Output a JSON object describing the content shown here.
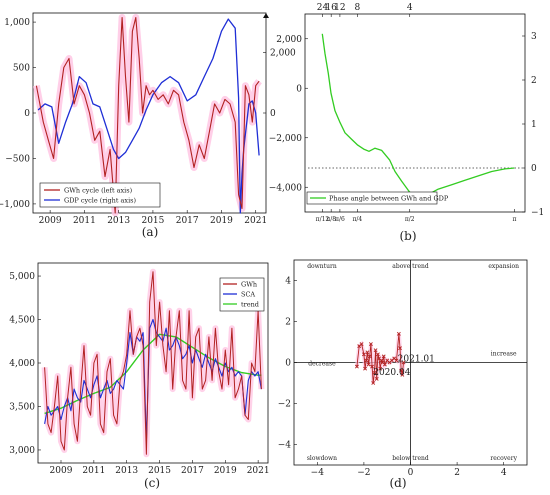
{
  "colors": {
    "gwh": "#b22222",
    "gdp": "#1f2fd6",
    "sca": "#1f2fd6",
    "trend": "#33cc22",
    "phase": "#33cc22",
    "pink": "#ffc7e4",
    "axis": "#111111"
  },
  "chart_data": [
    {
      "id": "a",
      "type": "line",
      "panel_label": "(a)",
      "xlim": [
        2008,
        2021.6
      ],
      "x_ticks": [
        "2009",
        "2011",
        "2013",
        "2015",
        "2017",
        "2019",
        "2021"
      ],
      "y_left": {
        "lim": [
          -1100,
          1100
        ],
        "ticks": [
          "−1,000",
          "−500",
          "0",
          "500",
          "1,000"
        ],
        "tick_values": [
          -1000,
          -500,
          0,
          500,
          1000
        ]
      },
      "y_right": {
        "lim": [
          -3300,
          3300
        ],
        "ticks": [
          "0",
          "2,000"
        ],
        "tick_values": [
          0,
          2000
        ]
      },
      "legend": [
        "GWh cycle (left axis)",
        "GDP cycle (right axis)"
      ],
      "series": [
        {
          "name": "GWh cycle (left axis)",
          "axis": "left",
          "x": [
            2008.2,
            2008.6,
            2008.9,
            2009.2,
            2009.5,
            2009.8,
            2010.1,
            2010.4,
            2010.7,
            2011.0,
            2011.3,
            2011.6,
            2011.9,
            2012.2,
            2012.5,
            2012.8,
            2013.0,
            2013.2,
            2013.4,
            2013.6,
            2013.8,
            2014.0,
            2014.2,
            2014.4,
            2014.6,
            2014.8,
            2015.0,
            2015.3,
            2015.6,
            2015.9,
            2016.2,
            2016.5,
            2016.8,
            2017.1,
            2017.4,
            2017.7,
            2018.0,
            2018.3,
            2018.6,
            2018.9,
            2019.2,
            2019.5,
            2019.8,
            2020.0,
            2020.2,
            2020.4,
            2020.6,
            2020.8,
            2021.0,
            2021.2
          ],
          "y": [
            300,
            -100,
            -300,
            -500,
            100,
            500,
            600,
            100,
            300,
            200,
            0,
            -300,
            -200,
            -700,
            -400,
            -1100,
            300,
            1050,
            400,
            -100,
            900,
            1050,
            600,
            0,
            300,
            200,
            250,
            150,
            200,
            100,
            250,
            200,
            -100,
            -300,
            -600,
            -350,
            -500,
            -200,
            100,
            0,
            150,
            100,
            -100,
            -900,
            -1050,
            300,
            200,
            -100,
            300,
            350
          ]
        },
        {
          "name": "GDP cycle (right axis)",
          "axis": "right",
          "x": [
            2008.3,
            2008.7,
            2009.1,
            2009.5,
            2009.9,
            2010.3,
            2010.7,
            2011.1,
            2011.5,
            2011.9,
            2012.3,
            2012.7,
            2013.0,
            2013.4,
            2013.8,
            2014.2,
            2014.6,
            2015.0,
            2015.5,
            2016.0,
            2016.5,
            2017.0,
            2017.5,
            2018.0,
            2018.5,
            2019.0,
            2019.4,
            2019.8,
            2020.0,
            2020.1,
            2020.2,
            2020.3,
            2020.4,
            2020.6,
            2020.8,
            2021.0,
            2021.2
          ],
          "y": [
            100,
            300,
            200,
            -1000,
            -300,
            300,
            1200,
            1000,
            300,
            200,
            -500,
            -1200,
            -1500,
            -1300,
            -900,
            -500,
            100,
            600,
            1000,
            1200,
            1000,
            400,
            600,
            1200,
            1800,
            2700,
            3100,
            2800,
            500,
            -3300,
            -2000,
            -1200,
            -700,
            300,
            400,
            0,
            -1400
          ]
        }
      ]
    },
    {
      "id": "b",
      "type": "line",
      "panel_label": "(b)",
      "top_axis_ticks": [
        "24",
        "16",
        "12",
        "8",
        "4"
      ],
      "x_ticks": [
        "π/12",
        "π/8",
        "π/6",
        "π/4",
        "π/2",
        "π"
      ],
      "y_left": {
        "lim": [
          -5000,
          3000
        ],
        "ticks": [
          "−4,000",
          "−2,000",
          "0",
          "2,000"
        ],
        "tick_values": [
          -4000,
          -2000,
          0,
          2000
        ]
      },
      "y_right": {
        "lim": [
          -1,
          3.5
        ],
        "ticks": [
          "−1",
          "0",
          "1",
          "2",
          "3"
        ],
        "tick_values": [
          -1,
          0,
          1,
          2,
          3
        ]
      },
      "reference_line": 0,
      "legend": [
        "Phase angle between GWh and GDP"
      ],
      "series": [
        {
          "name": "Phase angle between GWh and GDP",
          "axis": "right",
          "x": [
            0.26,
            0.3,
            0.35,
            0.39,
            0.45,
            0.52,
            0.6,
            0.7,
            0.79,
            0.88,
            0.96,
            1.05,
            1.15,
            1.27,
            1.35,
            1.45,
            1.57,
            1.7,
            1.85,
            2.0,
            2.2,
            2.4,
            2.6,
            2.8,
            3.0,
            3.14
          ],
          "y": [
            3.05,
            2.6,
            2.15,
            1.7,
            1.3,
            1.05,
            0.8,
            0.65,
            0.52,
            0.43,
            0.38,
            0.45,
            0.4,
            0.18,
            -0.08,
            -0.3,
            -0.55,
            -0.65,
            -0.6,
            -0.48,
            -0.38,
            -0.28,
            -0.18,
            -0.08,
            -0.02,
            0.0
          ]
        }
      ]
    },
    {
      "id": "c",
      "type": "line",
      "panel_label": "(c)",
      "xlim": [
        2007.6,
        2021.6
      ],
      "ylim": [
        2850,
        5150
      ],
      "x_ticks": [
        "2009",
        "2011",
        "2013",
        "2015",
        "2017",
        "2019",
        "2021"
      ],
      "y_ticks": [
        "3,000",
        "3,500",
        "4,000",
        "4,500",
        "5,000"
      ],
      "y_tick_values": [
        3000,
        3500,
        4000,
        4500,
        5000
      ],
      "legend": [
        "GWh",
        "SCA",
        "trend"
      ],
      "series": [
        {
          "name": "GWh",
          "x": [
            2008.0,
            2008.2,
            2008.4,
            2008.6,
            2008.8,
            2009.0,
            2009.2,
            2009.4,
            2009.6,
            2009.8,
            2010.0,
            2010.2,
            2010.4,
            2010.6,
            2010.8,
            2011.0,
            2011.2,
            2011.4,
            2011.6,
            2011.8,
            2012.0,
            2012.2,
            2012.4,
            2012.6,
            2012.8,
            2013.0,
            2013.2,
            2013.4,
            2013.6,
            2013.8,
            2014.0,
            2014.2,
            2014.4,
            2014.6,
            2014.8,
            2015.0,
            2015.2,
            2015.4,
            2015.6,
            2015.8,
            2016.0,
            2016.2,
            2016.4,
            2016.6,
            2016.8,
            2017.0,
            2017.2,
            2017.4,
            2017.6,
            2017.8,
            2018.0,
            2018.2,
            2018.4,
            2018.6,
            2018.8,
            2019.0,
            2019.2,
            2019.4,
            2019.6,
            2019.8,
            2020.0,
            2020.2,
            2020.4,
            2020.6,
            2020.8,
            2021.0,
            2021.2
          ],
          "y": [
            3950,
            3300,
            3200,
            3500,
            3850,
            3100,
            3000,
            3600,
            3950,
            3300,
            3100,
            3700,
            4200,
            3500,
            3400,
            4000,
            4100,
            3300,
            3200,
            3900,
            4050,
            3400,
            3300,
            3800,
            3900,
            4100,
            4600,
            4100,
            4300,
            4400,
            4200,
            2950,
            4700,
            5050,
            4200,
            4700,
            4200,
            3900,
            4600,
            3700,
            4300,
            4600,
            3800,
            3700,
            4600,
            3600,
            4300,
            4400,
            3700,
            3800,
            4300,
            3800,
            4400,
            3900,
            3700,
            4150,
            3750,
            4400,
            3600,
            3700,
            3850,
            3400,
            3350,
            4000,
            3900,
            4600,
            3700
          ]
        },
        {
          "name": "SCA",
          "x": [
            2008.0,
            2008.2,
            2008.4,
            2008.6,
            2008.8,
            2009.0,
            2009.2,
            2009.4,
            2009.6,
            2009.8,
            2010.0,
            2010.2,
            2010.4,
            2010.6,
            2010.8,
            2011.0,
            2011.2,
            2011.4,
            2011.6,
            2011.8,
            2012.0,
            2012.2,
            2012.4,
            2012.6,
            2012.8,
            2013.0,
            2013.2,
            2013.4,
            2013.6,
            2013.8,
            2014.0,
            2014.2,
            2014.4,
            2014.6,
            2014.8,
            2015.0,
            2015.2,
            2015.4,
            2015.6,
            2015.8,
            2016.0,
            2016.2,
            2016.4,
            2016.6,
            2016.8,
            2017.0,
            2017.2,
            2017.4,
            2017.6,
            2017.8,
            2018.0,
            2018.2,
            2018.4,
            2018.6,
            2018.8,
            2019.0,
            2019.2,
            2019.4,
            2019.6,
            2019.8,
            2020.0,
            2020.2,
            2020.4,
            2020.6,
            2020.8,
            2021.0,
            2021.2
          ],
          "y": [
            3300,
            3500,
            3400,
            3450,
            3500,
            3350,
            3500,
            3600,
            3450,
            3700,
            3600,
            3550,
            3800,
            3700,
            3600,
            3750,
            3850,
            3600,
            3700,
            3800,
            3650,
            3700,
            3800,
            3750,
            3700,
            4000,
            4350,
            4100,
            4300,
            4250,
            4350,
            3100,
            4400,
            4500,
            4350,
            4300,
            4250,
            4400,
            4150,
            4200,
            4300,
            4200,
            4050,
            4100,
            4200,
            4000,
            4150,
            4050,
            3950,
            4100,
            4000,
            3900,
            4050,
            3950,
            3850,
            4000,
            3900,
            3950,
            3850,
            3900,
            3850,
            3400,
            3800,
            3900,
            3850,
            3900,
            3700
          ]
        },
        {
          "name": "trend",
          "x": [
            2008.0,
            2009.0,
            2010.0,
            2011.0,
            2012.0,
            2013.0,
            2014.0,
            2015.0,
            2016.0,
            2017.0,
            2018.0,
            2019.0,
            2020.0,
            2021.0,
            2021.2
          ],
          "y": [
            3420,
            3480,
            3570,
            3650,
            3720,
            3900,
            4150,
            4330,
            4300,
            4180,
            4060,
            3960,
            3890,
            3860,
            3860
          ]
        }
      ]
    },
    {
      "id": "d",
      "type": "scatter",
      "panel_label": "(d)",
      "xlim": [
        -5,
        5
      ],
      "ylim": [
        -5,
        5
      ],
      "x_ticks": [
        "−4",
        "−2",
        "0",
        "2",
        "4"
      ],
      "x_tick_values": [
        -4,
        -2,
        0,
        2,
        4
      ],
      "y_ticks": [
        "−4",
        "−2",
        "0",
        "2",
        "4"
      ],
      "y_tick_values": [
        -4,
        -2,
        0,
        2,
        4
      ],
      "quadrant_labels": [
        "downturn",
        "above trend",
        "expansion",
        "decrease",
        "increase",
        "slowdown",
        "below trend",
        "recovery"
      ],
      "annotations": [
        {
          "text": "2021.01",
          "x": -0.55,
          "y": 0.05
        },
        {
          "text": "2020.04",
          "x": -1.6,
          "y": -0.6
        }
      ],
      "points": {
        "x": [
          -2.3,
          -2.2,
          -2.1,
          -2.0,
          -1.95,
          -1.9,
          -1.85,
          -1.8,
          -1.75,
          -1.7,
          -1.65,
          -1.6,
          -1.55,
          -1.5,
          -1.45,
          -1.4,
          -1.35,
          -1.3,
          -1.25,
          -1.2,
          -1.15,
          -1.1,
          -1.0,
          -0.9,
          -0.8,
          -0.7,
          -0.6,
          -0.5,
          -0.45,
          -0.4,
          -0.35,
          -0.3
        ],
        "y": [
          -0.2,
          0.8,
          0.9,
          0.4,
          -0.3,
          0.1,
          0.5,
          -0.1,
          0.3,
          0.9,
          -0.2,
          -1.0,
          -0.5,
          0.6,
          -0.8,
          0.4,
          0.2,
          -0.3,
          0.1,
          0.0,
          0.3,
          -0.1,
          0.1,
          0.0,
          0.1,
          0.2,
          0.1,
          1.4,
          0.7,
          -0.4,
          -0.6,
          0.0
        ]
      }
    }
  ]
}
